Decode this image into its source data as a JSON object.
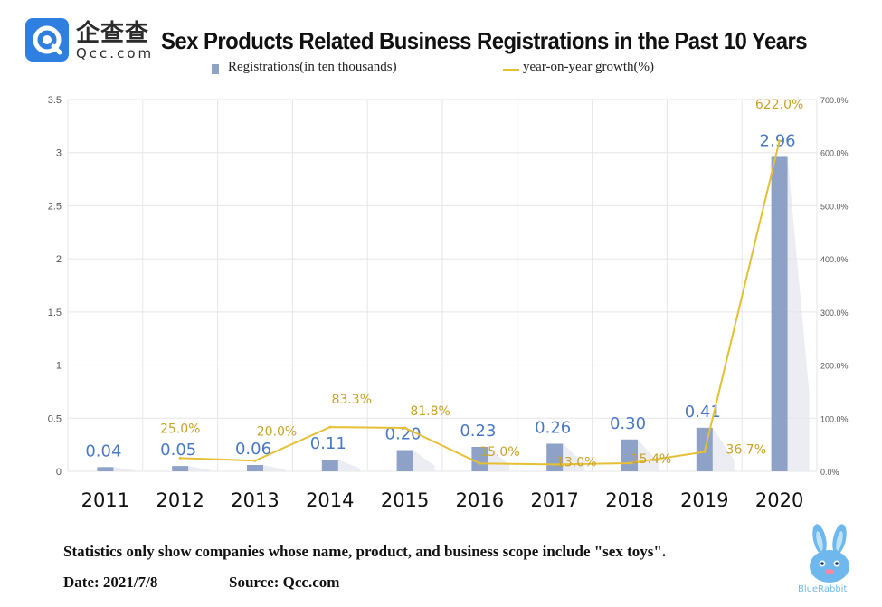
{
  "logo": {
    "cn": "企查查",
    "en": "Qcc.com"
  },
  "title": "Sex Products Related Business Registrations in the Past 10 Years",
  "legend": {
    "bar": "Registrations(in ten thousands)",
    "line": "year-on-year growth(%)"
  },
  "footnote": "Statistics only show companies whose name, product, and business scope include \"sex toys\".",
  "date": "Date: 2021/7/8",
  "source": "Source: Qcc.com",
  "mascot_text": "BlueRabbit",
  "colors": {
    "bar": "#8ea2c8",
    "bar_label": "#4a78c8",
    "line": "#e5c034",
    "line_label": "#c9a227",
    "grid": "#e6e6e6"
  },
  "chart_data": {
    "type": "bar",
    "categories": [
      "2011",
      "2012",
      "2013",
      "2014",
      "2015",
      "2016",
      "2017",
      "2018",
      "2019",
      "2020"
    ],
    "series": [
      {
        "name": "Registrations(in ten thousands)",
        "type": "bar",
        "axis": "left",
        "values": [
          0.04,
          0.05,
          0.06,
          0.11,
          0.2,
          0.23,
          0.26,
          0.3,
          0.41,
          2.96
        ],
        "labels": [
          "0.04",
          "0.05",
          "0.06",
          "0.11",
          "0.20",
          "0.23",
          "0.26",
          "0.30",
          "0.41",
          "2.96"
        ]
      },
      {
        "name": "year-on-year growth(%)",
        "type": "line",
        "axis": "right",
        "values": [
          null,
          25.0,
          20.0,
          83.3,
          81.8,
          15.0,
          13.0,
          15.4,
          36.7,
          622.0
        ],
        "labels": [
          null,
          "25.0%",
          "20.0%",
          "83.3%",
          "81.8%",
          "15.0%",
          "13.0%",
          "15.4%",
          "36.7%",
          "622.0%"
        ]
      }
    ],
    "y_left": {
      "ylim": [
        0,
        3.5
      ],
      "ticks": [
        "0",
        "0.5",
        "1",
        "1.5",
        "2",
        "2.5",
        "3",
        "3.5"
      ]
    },
    "y_right": {
      "ylim": [
        0,
        700
      ],
      "ticks": [
        "0.0%",
        "100.0%",
        "200.0%",
        "300.0%",
        "400.0%",
        "500.0%",
        "600.0%",
        "700.0%"
      ]
    },
    "grid": true,
    "legend_position": "top"
  }
}
